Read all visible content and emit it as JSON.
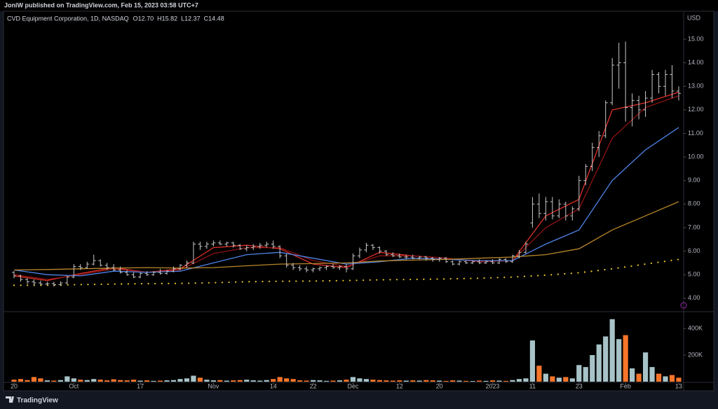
{
  "header": {
    "text": "JoniW published on TradingView.com, Feb 15, 2023 03:58 UTC+7"
  },
  "footer": {
    "brand": "TradingView"
  },
  "chart_data": [
    {
      "type": "ohlc",
      "symbol": "CVD Equipment Corporation, 1D, NASDAQ",
      "legend_values": [
        "O12.70",
        "H15.82",
        "L12.37",
        "C14.48"
      ],
      "currency": "USD",
      "color": "#c8c8c8",
      "grid": false,
      "xlim": [
        -1.58,
        100.74
      ],
      "ylim": [
        3.49,
        16.13
      ],
      "yticks": [
        {
          "value": 4,
          "label": "4.00"
        },
        {
          "value": 5,
          "label": "5.00"
        },
        {
          "value": 6,
          "label": "6.00"
        },
        {
          "value": 7,
          "label": "7.00"
        },
        {
          "value": 8,
          "label": "8.00"
        },
        {
          "value": 9,
          "label": "9.00"
        },
        {
          "value": 10,
          "label": "10.00"
        },
        {
          "value": 11,
          "label": "11.00"
        },
        {
          "value": 12,
          "label": "12.00"
        },
        {
          "value": 13,
          "label": "13.00"
        },
        {
          "value": 14,
          "label": "14.00"
        },
        {
          "value": 15,
          "label": "15.00"
        }
      ],
      "open": [
        5.1,
        4.95,
        4.8,
        4.7,
        4.65,
        4.6,
        4.62,
        4.58,
        4.65,
        4.9,
        5.35,
        5.3,
        5.45,
        5.6,
        5.4,
        5.3,
        5.2,
        5.1,
        5.0,
        4.9,
        5.05,
        5.0,
        5.1,
        5.05,
        5.15,
        5.25,
        5.4,
        5.5,
        6.3,
        6.2,
        6.3,
        6.35,
        6.3,
        6.35,
        6.25,
        6.1,
        6.15,
        6.2,
        6.25,
        6.3,
        6.2,
        5.8,
        5.4,
        5.3,
        5.25,
        5.2,
        5.25,
        5.3,
        5.35,
        5.3,
        5.35,
        5.25,
        5.8,
        6.05,
        6.25,
        6.15,
        6.0,
        5.85,
        5.8,
        5.75,
        5.75,
        5.7,
        5.75,
        5.7,
        5.65,
        5.7,
        5.55,
        5.45,
        5.55,
        5.5,
        5.55,
        5.5,
        5.55,
        5.5,
        5.65,
        5.55,
        5.8,
        5.95,
        7.2,
        8.0,
        7.6,
        8.1,
        7.5,
        8.0,
        7.5,
        7.8,
        9.0,
        9.6,
        10.4,
        10.9,
        12.3,
        13.9,
        14.0,
        12.1,
        12.4,
        12.0,
        12.5,
        13.5,
        13.0,
        13.5,
        12.8
      ],
      "high": [
        5.15,
        5.0,
        4.85,
        4.8,
        4.75,
        4.7,
        4.7,
        4.72,
        4.95,
        5.45,
        5.45,
        5.55,
        5.85,
        5.65,
        5.5,
        5.45,
        5.35,
        5.2,
        5.1,
        5.1,
        5.15,
        5.15,
        5.25,
        5.2,
        5.35,
        5.45,
        5.6,
        6.4,
        6.4,
        6.4,
        6.45,
        6.45,
        6.4,
        6.4,
        6.3,
        6.25,
        6.3,
        6.35,
        6.4,
        6.45,
        6.25,
        5.9,
        5.5,
        5.4,
        5.35,
        5.3,
        5.35,
        5.4,
        5.45,
        5.4,
        5.45,
        5.9,
        6.15,
        6.35,
        6.3,
        6.2,
        6.05,
        5.95,
        5.9,
        5.85,
        5.85,
        5.8,
        5.8,
        5.75,
        5.75,
        5.75,
        5.6,
        5.6,
        5.6,
        5.6,
        5.65,
        5.6,
        5.65,
        5.7,
        5.7,
        5.85,
        6.05,
        6.4,
        8.3,
        8.45,
        8.3,
        8.3,
        8.2,
        8.1,
        7.9,
        9.2,
        9.7,
        10.6,
        11.1,
        12.4,
        14.2,
        14.85,
        14.9,
        12.7,
        12.6,
        12.8,
        13.7,
        13.6,
        13.7,
        13.9,
        13.0
      ],
      "low": [
        4.85,
        4.7,
        4.6,
        4.55,
        4.55,
        4.55,
        4.5,
        4.52,
        4.6,
        4.85,
        5.2,
        5.25,
        5.4,
        5.35,
        5.2,
        5.15,
        5.05,
        4.95,
        4.85,
        4.85,
        4.95,
        4.95,
        5.0,
        5.0,
        5.1,
        5.2,
        5.3,
        5.45,
        6.05,
        6.1,
        6.2,
        6.25,
        6.2,
        6.15,
        6.05,
        6.0,
        6.05,
        6.1,
        6.15,
        6.1,
        5.7,
        5.3,
        5.2,
        5.15,
        5.1,
        5.1,
        5.15,
        5.2,
        5.25,
        5.2,
        5.1,
        5.2,
        5.7,
        5.95,
        6.05,
        5.9,
        5.8,
        5.75,
        5.7,
        5.65,
        5.65,
        5.65,
        5.6,
        5.55,
        5.55,
        5.5,
        5.4,
        5.4,
        5.45,
        5.45,
        5.45,
        5.45,
        5.45,
        5.45,
        5.5,
        5.5,
        5.7,
        5.9,
        7.0,
        7.4,
        7.3,
        7.35,
        7.4,
        7.3,
        7.3,
        7.7,
        8.8,
        9.4,
        10.0,
        10.8,
        12.2,
        12.9,
        11.5,
        11.3,
        11.6,
        11.7,
        12.3,
        12.7,
        12.6,
        12.5,
        12.4
      ],
      "close": [
        4.95,
        4.8,
        4.7,
        4.65,
        4.6,
        4.62,
        4.58,
        4.65,
        4.9,
        5.35,
        5.3,
        5.45,
        5.6,
        5.4,
        5.3,
        5.2,
        5.1,
        5.0,
        4.9,
        5.05,
        5.0,
        5.1,
        5.05,
        5.15,
        5.25,
        5.4,
        5.5,
        6.3,
        6.2,
        6.3,
        6.35,
        6.3,
        6.35,
        6.25,
        6.1,
        6.15,
        6.2,
        6.25,
        6.3,
        6.2,
        5.8,
        5.4,
        5.3,
        5.25,
        5.2,
        5.25,
        5.3,
        5.35,
        5.3,
        5.35,
        5.25,
        5.8,
        6.05,
        6.25,
        6.15,
        6.0,
        5.85,
        5.8,
        5.75,
        5.75,
        5.7,
        5.75,
        5.7,
        5.65,
        5.7,
        5.55,
        5.45,
        5.55,
        5.5,
        5.55,
        5.5,
        5.55,
        5.5,
        5.65,
        5.55,
        5.8,
        5.95,
        6.3,
        8.0,
        7.6,
        8.1,
        7.5,
        8.0,
        7.5,
        7.8,
        9.0,
        9.6,
        10.4,
        10.9,
        12.3,
        13.9,
        14.0,
        12.1,
        12.4,
        12.0,
        12.5,
        13.5,
        13.0,
        13.5,
        12.8,
        12.7
      ],
      "series": [
        {
          "color": "#e0312b",
          "style": "solid",
          "x": [
            0,
            5,
            10,
            15,
            20,
            25,
            30,
            35,
            40,
            45,
            50,
            55,
            60,
            65,
            70,
            75,
            80,
            85,
            90,
            95,
            100
          ],
          "values": [
            4.95,
            4.75,
            5.05,
            5.3,
            5.1,
            5.25,
            6.15,
            6.25,
            6.1,
            5.45,
            5.3,
            5.95,
            5.8,
            5.7,
            5.55,
            5.6,
            7.5,
            8.2,
            12.0,
            12.3,
            12.75
          ]
        },
        {
          "color": "#8e1212",
          "style": "solid",
          "x": [
            0,
            5,
            10,
            15,
            20,
            25,
            30,
            35,
            40,
            45,
            50,
            55,
            60,
            65,
            70,
            75,
            80,
            85,
            90,
            95,
            100
          ],
          "values": [
            5.0,
            4.8,
            5.0,
            5.25,
            5.1,
            5.2,
            5.9,
            6.15,
            6.15,
            5.6,
            5.35,
            5.8,
            5.8,
            5.7,
            5.55,
            5.6,
            7.0,
            7.8,
            10.8,
            12.1,
            12.6
          ]
        },
        {
          "color": "#4f84e8",
          "style": "solid",
          "x": [
            0,
            5,
            10,
            15,
            20,
            25,
            30,
            35,
            40,
            45,
            50,
            55,
            60,
            65,
            70,
            75,
            80,
            85,
            90,
            95,
            100
          ],
          "values": [
            5.2,
            5.0,
            4.95,
            5.15,
            5.1,
            5.15,
            5.5,
            5.85,
            5.95,
            5.7,
            5.45,
            5.55,
            5.7,
            5.65,
            5.6,
            5.6,
            6.3,
            6.9,
            9.0,
            10.3,
            11.25
          ]
        },
        {
          "color": "#b8862b",
          "style": "solid",
          "x": [
            0,
            5,
            10,
            15,
            20,
            25,
            30,
            35,
            40,
            45,
            50,
            55,
            60,
            65,
            70,
            75,
            80,
            85,
            90,
            95,
            100
          ],
          "values": [
            5.2,
            5.22,
            5.25,
            5.28,
            5.3,
            5.28,
            5.3,
            5.38,
            5.45,
            5.47,
            5.5,
            5.58,
            5.62,
            5.65,
            5.7,
            5.75,
            5.85,
            6.1,
            6.9,
            7.5,
            8.1
          ]
        },
        {
          "color": "#e6c229",
          "style": "dotted",
          "x": [
            0,
            5,
            10,
            15,
            20,
            25,
            30,
            35,
            40,
            45,
            50,
            55,
            60,
            65,
            70,
            75,
            80,
            85,
            90,
            95,
            100
          ],
          "values": [
            4.55,
            4.55,
            4.58,
            4.6,
            4.62,
            4.63,
            4.66,
            4.7,
            4.72,
            4.73,
            4.75,
            4.78,
            4.8,
            4.82,
            4.85,
            4.9,
            4.98,
            5.08,
            5.25,
            5.45,
            5.65
          ]
        }
      ]
    },
    {
      "type": "volume",
      "up_color": "#a7c3c7",
      "down_color": "#f7752a",
      "grid": false,
      "xlim": [
        -1.58,
        100.74
      ],
      "ylim": [
        0,
        516000
      ],
      "yticks": [
        {
          "value": 200000,
          "label": "200K"
        },
        {
          "value": 400000,
          "label": "400K"
        }
      ],
      "xticks": [
        {
          "value": 0,
          "label": "20"
        },
        {
          "value": 9,
          "label": "Oct"
        },
        {
          "value": 19,
          "label": "17"
        },
        {
          "value": 30,
          "label": "Nov"
        },
        {
          "value": 39,
          "label": "14"
        },
        {
          "value": 45,
          "label": "22"
        },
        {
          "value": 51,
          "label": "Dec"
        },
        {
          "value": 58,
          "label": "12"
        },
        {
          "value": 64,
          "label": "20"
        },
        {
          "value": 72,
          "label": "2023"
        },
        {
          "value": 78,
          "label": "11"
        },
        {
          "value": 85,
          "label": "23"
        },
        {
          "value": 92,
          "label": "Feb"
        },
        {
          "value": 100,
          "label": "13"
        }
      ],
      "values": [
        15000,
        20000,
        12000,
        35000,
        25000,
        10000,
        8000,
        12000,
        40000,
        25000,
        15000,
        12000,
        20000,
        15000,
        10000,
        18000,
        12000,
        10000,
        15000,
        8000,
        10000,
        6000,
        8000,
        10000,
        12000,
        20000,
        25000,
        45000,
        30000,
        15000,
        10000,
        12000,
        8000,
        10000,
        12000,
        15000,
        10000,
        8000,
        12000,
        20000,
        35000,
        25000,
        20000,
        10000,
        8000,
        12000,
        10000,
        6000,
        8000,
        10000,
        15000,
        35000,
        25000,
        20000,
        15000,
        12000,
        10000,
        8000,
        10000,
        8000,
        10000,
        8000,
        12000,
        10000,
        8000,
        6000,
        10000,
        8000,
        6000,
        5000,
        8000,
        6000,
        10000,
        8000,
        6000,
        12000,
        20000,
        25000,
        310000,
        120000,
        60000,
        40000,
        30000,
        35000,
        25000,
        125000,
        110000,
        200000,
        280000,
        340000,
        470000,
        320000,
        350000,
        100000,
        60000,
        220000,
        110000,
        60000,
        40000,
        50000,
        30000
      ]
    }
  ]
}
